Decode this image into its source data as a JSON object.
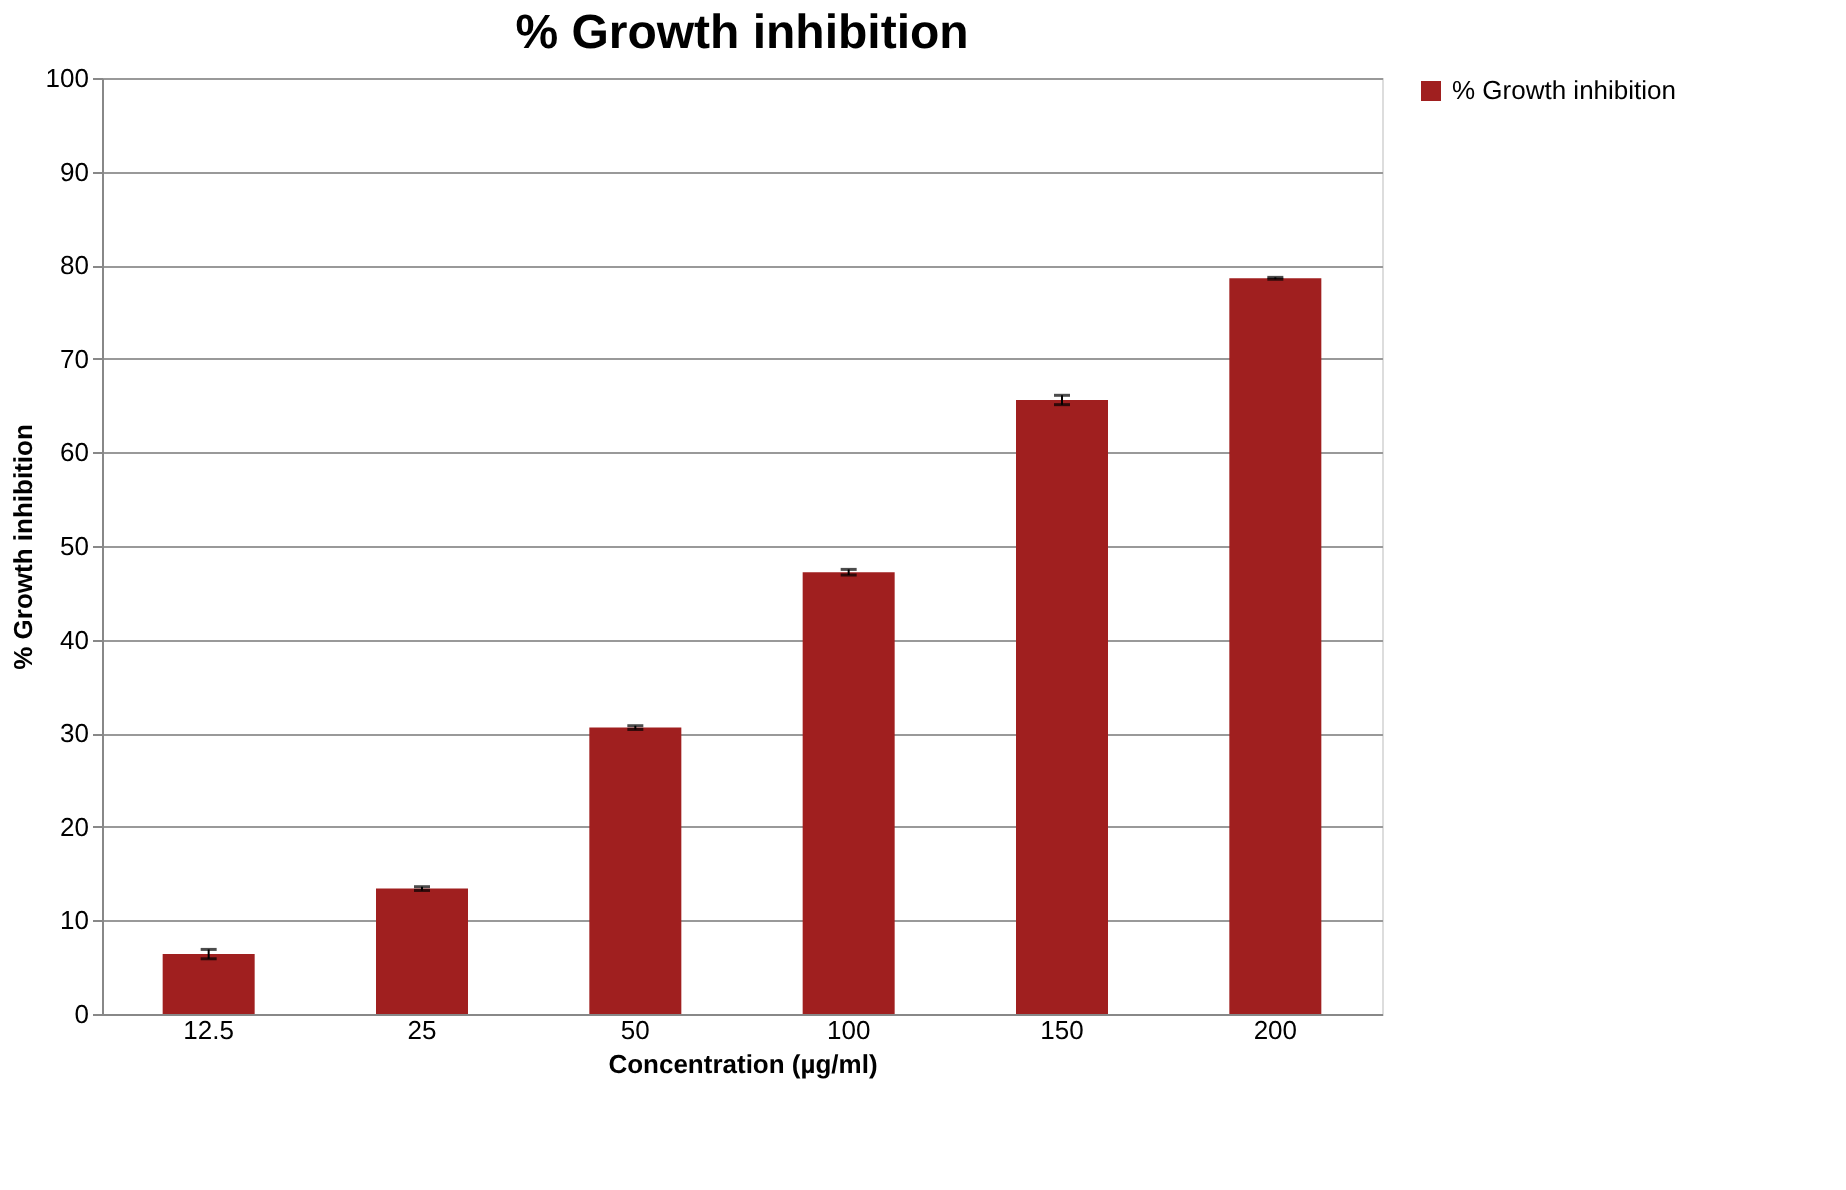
{
  "chart_data": {
    "type": "bar",
    "title": "% Growth inhibition",
    "xlabel": "Concentration  (µg/ml)",
    "ylabel": "% Growth inhibition",
    "categories": [
      "12.5",
      "25",
      "50",
      "100",
      "150",
      "200"
    ],
    "series": [
      {
        "name": "% Growth inhibition",
        "color": "#a01f1f",
        "values": [
          6.4,
          13.4,
          30.6,
          47.2,
          65.6,
          78.6
        ],
        "errors": [
          0.5,
          0.2,
          0.2,
          0.3,
          0.5,
          0.1
        ]
      }
    ],
    "ylim": [
      0,
      100
    ],
    "yticks": [
      0,
      10,
      20,
      30,
      40,
      50,
      60,
      70,
      80,
      90,
      100
    ],
    "grid": "y",
    "legend": "right"
  }
}
